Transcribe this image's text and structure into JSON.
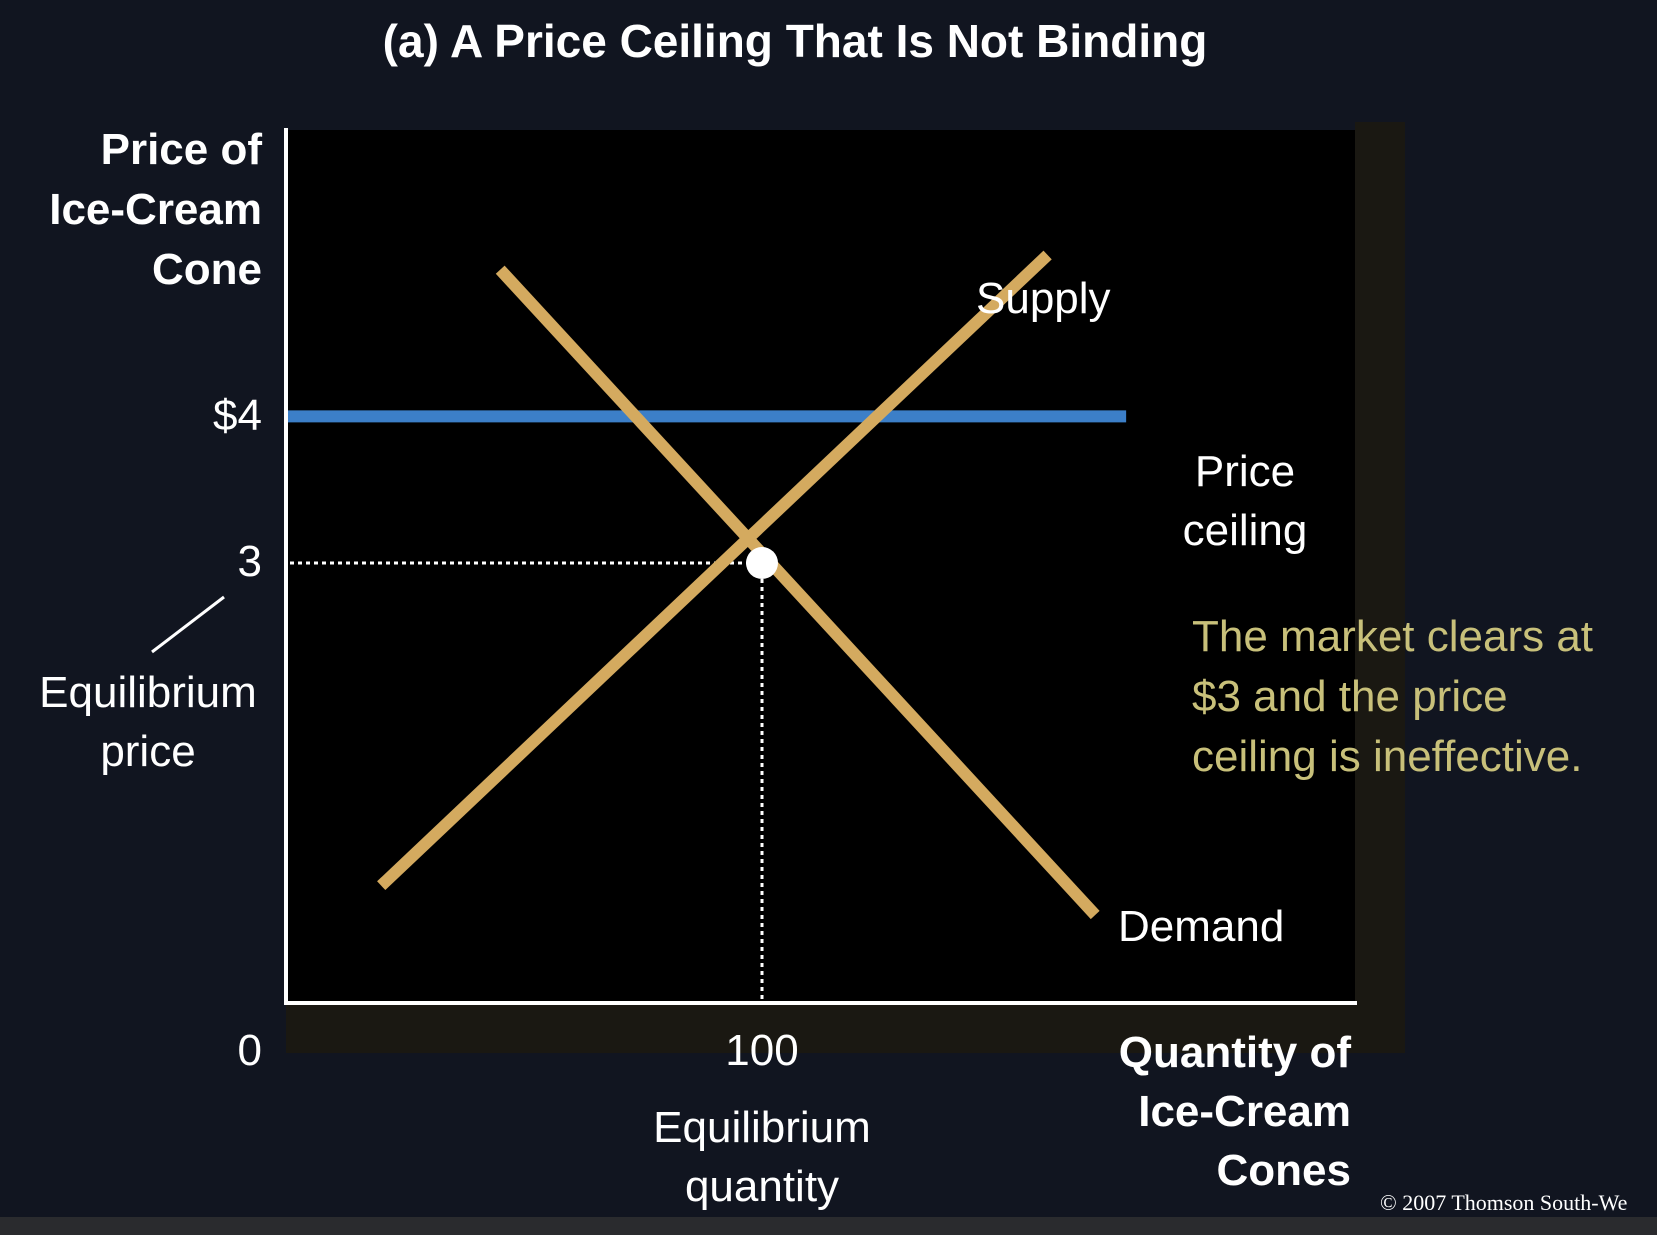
{
  "title": "(a) A Price Ceiling That Is Not Binding",
  "chart_data": {
    "type": "line",
    "title": "(a) A Price Ceiling That Is Not Binding",
    "ylabel": [
      "Price of",
      "Ice-Cream",
      "Cone"
    ],
    "xlabel": [
      "Quantity of",
      "Ice-Cream",
      "Cones"
    ],
    "y_ticks": [
      {
        "value": 4,
        "label": "$4"
      },
      {
        "value": 3,
        "label": "3"
      }
    ],
    "x_ticks": [
      {
        "value": 100,
        "label": "100"
      }
    ],
    "origin_label": "0",
    "series": [
      {
        "name": "Supply",
        "color": "#d4aa5f",
        "points": [
          [
            20,
            0.8
          ],
          [
            160,
            5.1
          ]
        ]
      },
      {
        "name": "Demand",
        "color": "#d4aa5f",
        "points": [
          [
            45,
            5
          ]
        ],
        "points_end": [
          [
            170,
            0.6
          ]
        ]
      }
    ],
    "demand_points": [
      [
        45,
        5.0
      ],
      [
        170,
        0.6
      ]
    ],
    "supply_points": [
      [
        20,
        0.8
      ],
      [
        160,
        5.1
      ]
    ],
    "price_ceiling": {
      "value": 4,
      "color": "#3c7fc8",
      "label": [
        "Price",
        "ceiling"
      ]
    },
    "equilibrium": {
      "quantity": 100,
      "price": 3,
      "price_label": [
        "Equilibrium",
        "price"
      ],
      "quantity_label": [
        "Equilibrium",
        "quantity"
      ]
    },
    "annotation": [
      "The market clears at",
      "$3 and the price",
      "ceiling is ineffective."
    ]
  },
  "copyright": "© 2007 Thomson South-We"
}
